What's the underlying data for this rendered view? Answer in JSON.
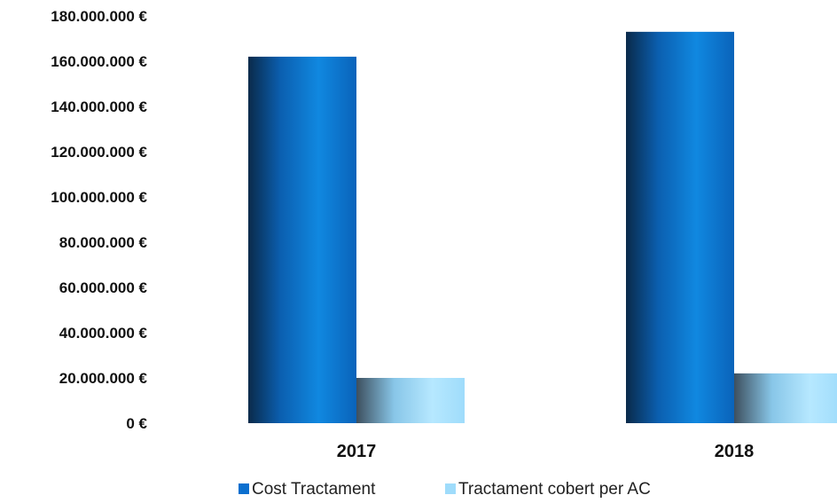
{
  "chart_data": {
    "type": "bar",
    "title": "",
    "xlabel": "",
    "ylabel": "",
    "categories": [
      "2017",
      "2018"
    ],
    "series": [
      {
        "name": "Cost Tractament",
        "values": [
          162000000,
          173000000
        ],
        "color": "#0b6fcf"
      },
      {
        "name": "Tractament cobert per AC",
        "values": [
          20000000,
          22000000
        ],
        "color": "#9fdcfb"
      }
    ],
    "ylim": [
      0,
      180000000
    ],
    "yticks": [
      0,
      20000000,
      40000000,
      60000000,
      80000000,
      100000000,
      120000000,
      140000000,
      160000000,
      180000000
    ],
    "ytick_labels": [
      "0 €",
      "20.000.000 €",
      "40.000.000 €",
      "60.000.000 €",
      "80.000.000 €",
      "100.000.000 €",
      "120.000.000 €",
      "140.000.000 €",
      "160.000.000 €",
      "180.000.000 €"
    ],
    "grid": false,
    "legend_position": "bottom"
  }
}
